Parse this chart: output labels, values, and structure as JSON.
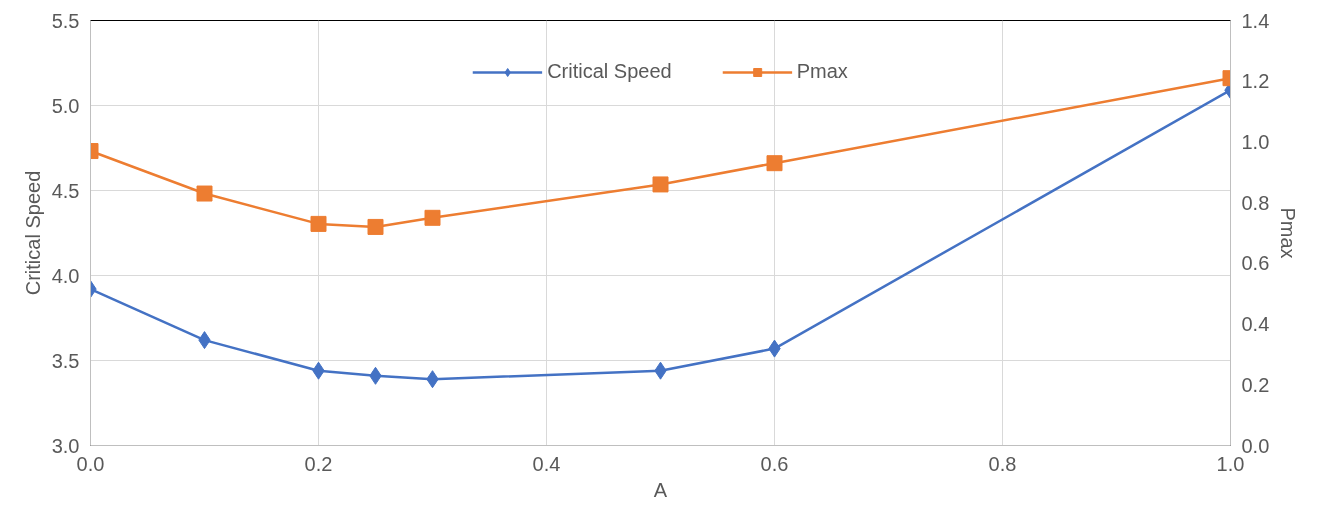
{
  "chart_data": {
    "type": "line",
    "xlabel": "A",
    "ylabel": "Critical Speed",
    "y2label": "Pmax",
    "x": [
      0,
      0.1,
      0.2,
      0.25,
      0.3,
      0.5,
      0.6,
      1.0
    ],
    "series": [
      {
        "name": "Critical Speed",
        "color": "#4472c4",
        "marker": "diamond",
        "values": [
          3.92,
          3.62,
          3.44,
          3.41,
          3.39,
          3.44,
          3.57,
          5.09
        ]
      },
      {
        "name": "Pmax",
        "color": "#ed7d31",
        "marker": "square",
        "axis": "y2",
        "values": [
          0.97,
          0.83,
          0.73,
          0.72,
          0.75,
          0.86,
          0.93,
          1.21
        ]
      }
    ],
    "xlim": [
      0,
      1.0
    ],
    "xticks": [
      {
        "value": 0,
        "label": "0.0"
      },
      0.2,
      0.4,
      0.6,
      0.8,
      {
        "value": 1.0,
        "label": "1.0"
      }
    ],
    "ylim": [
      3.0,
      5.5
    ],
    "yticks": [
      {
        "value": 3.0,
        "label": "3.0"
      },
      3.5,
      {
        "value": 4.0,
        "label": "4.0"
      },
      4.5,
      {
        "value": 5.0,
        "label": "5.0"
      },
      5.5
    ],
    "y2lim": [
      0,
      1.4
    ],
    "y2ticks": [
      {
        "value": 0,
        "label": "0.0"
      },
      0.2,
      0.4,
      0.6,
      0.8,
      {
        "value": 1.0,
        "label": "1.0"
      },
      1.2,
      1.4
    ],
    "grid": true,
    "legend": "top"
  }
}
